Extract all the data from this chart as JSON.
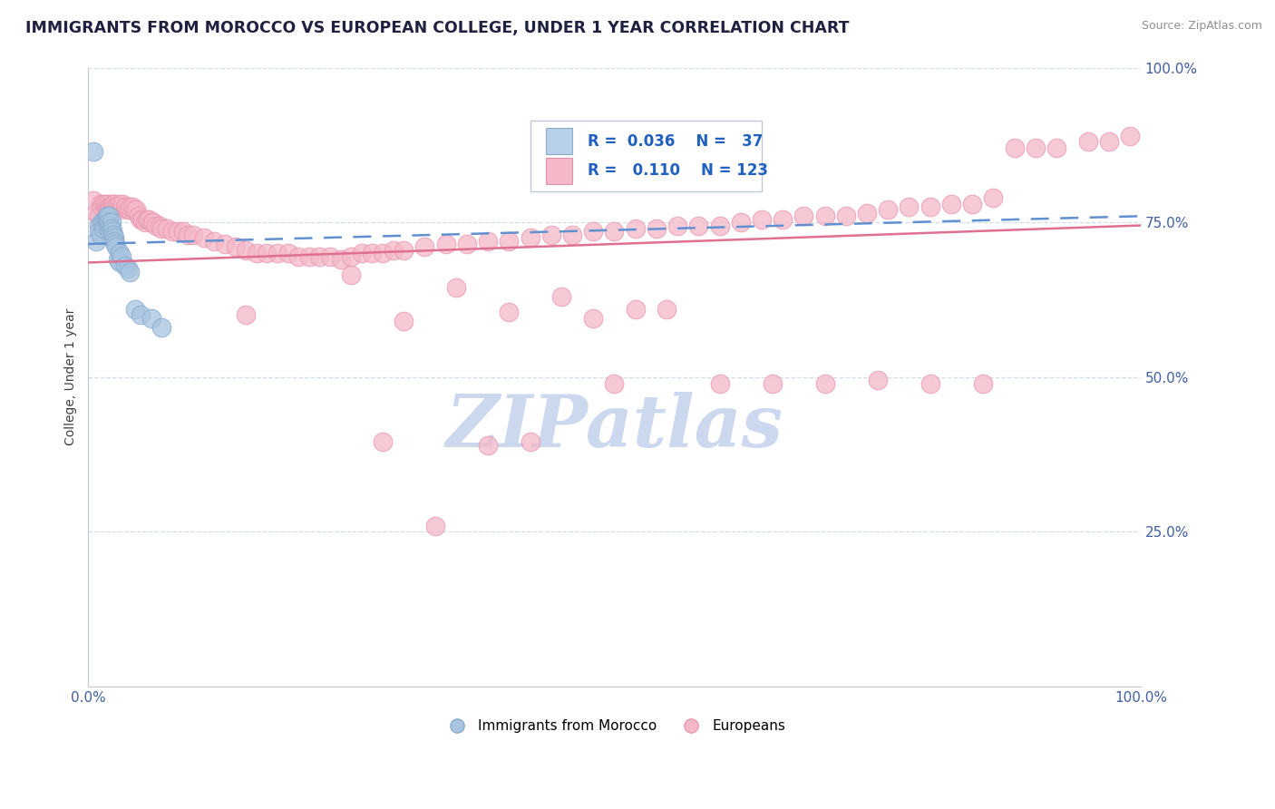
{
  "title": "IMMIGRANTS FROM MOROCCO VS EUROPEAN COLLEGE, UNDER 1 YEAR CORRELATION CHART",
  "source_text": "Source: ZipAtlas.com",
  "ylabel": "College, Under 1 year",
  "xlim": [
    0.0,
    1.0
  ],
  "ylim": [
    0.0,
    1.0
  ],
  "x_tick_labels": [
    "0.0%",
    "100.0%"
  ],
  "y_tick_labels": [
    "25.0%",
    "50.0%",
    "75.0%",
    "100.0%"
  ],
  "y_tick_positions": [
    0.25,
    0.5,
    0.75,
    1.0
  ],
  "legend_r_blue": "0.036",
  "legend_n_blue": "37",
  "legend_r_pink": "0.110",
  "legend_n_pink": "123",
  "legend_label_blue": "Immigrants from Morocco",
  "legend_label_pink": "Europeans",
  "blue_color": "#a8c4e0",
  "pink_color": "#f4b8c8",
  "trend_blue_color": "#6090d0",
  "trend_pink_color": "#e07090",
  "watermark": "ZIPatlas",
  "watermark_color": "#ccd8ee",
  "blue_trend_start": 0.715,
  "blue_trend_end": 0.76,
  "pink_trend_start": 0.685,
  "pink_trend_end": 0.745,
  "blue_scatter_x": [
    0.005,
    0.008,
    0.01,
    0.01,
    0.012,
    0.013,
    0.015,
    0.015,
    0.016,
    0.017,
    0.018,
    0.018,
    0.019,
    0.02,
    0.02,
    0.02,
    0.021,
    0.021,
    0.022,
    0.022,
    0.023,
    0.024,
    0.025,
    0.025,
    0.026,
    0.027,
    0.028,
    0.03,
    0.03,
    0.032,
    0.035,
    0.038,
    0.04,
    0.045,
    0.05,
    0.06,
    0.07
  ],
  "blue_scatter_y": [
    0.865,
    0.72,
    0.745,
    0.735,
    0.73,
    0.75,
    0.75,
    0.74,
    0.745,
    0.755,
    0.76,
    0.75,
    0.745,
    0.755,
    0.76,
    0.75,
    0.745,
    0.735,
    0.75,
    0.74,
    0.735,
    0.73,
    0.725,
    0.72,
    0.715,
    0.71,
    0.69,
    0.685,
    0.7,
    0.695,
    0.68,
    0.675,
    0.67,
    0.61,
    0.6,
    0.595,
    0.58
  ],
  "pink_scatter_x": [
    0.005,
    0.008,
    0.01,
    0.012,
    0.013,
    0.015,
    0.016,
    0.017,
    0.018,
    0.019,
    0.02,
    0.02,
    0.021,
    0.022,
    0.023,
    0.024,
    0.025,
    0.026,
    0.027,
    0.028,
    0.03,
    0.03,
    0.032,
    0.033,
    0.035,
    0.036,
    0.038,
    0.04,
    0.04,
    0.042,
    0.044,
    0.046,
    0.048,
    0.05,
    0.052,
    0.054,
    0.056,
    0.058,
    0.06,
    0.062,
    0.065,
    0.068,
    0.07,
    0.075,
    0.08,
    0.085,
    0.09,
    0.095,
    0.1,
    0.11,
    0.12,
    0.13,
    0.14,
    0.15,
    0.16,
    0.17,
    0.18,
    0.19,
    0.2,
    0.21,
    0.22,
    0.23,
    0.24,
    0.25,
    0.26,
    0.27,
    0.28,
    0.29,
    0.3,
    0.32,
    0.34,
    0.36,
    0.38,
    0.4,
    0.42,
    0.44,
    0.46,
    0.48,
    0.5,
    0.52,
    0.54,
    0.56,
    0.58,
    0.6,
    0.62,
    0.64,
    0.66,
    0.68,
    0.7,
    0.72,
    0.74,
    0.76,
    0.78,
    0.8,
    0.82,
    0.84,
    0.86,
    0.88,
    0.9,
    0.92,
    0.95,
    0.97,
    0.99,
    0.25,
    0.35,
    0.45,
    0.52,
    0.4,
    0.55,
    0.48,
    0.3,
    0.15,
    0.6,
    0.7,
    0.65,
    0.75,
    0.8,
    0.85,
    0.5,
    0.28,
    0.33,
    0.42,
    0.38
  ],
  "pink_scatter_y": [
    0.785,
    0.765,
    0.76,
    0.78,
    0.775,
    0.78,
    0.78,
    0.775,
    0.775,
    0.78,
    0.775,
    0.77,
    0.775,
    0.775,
    0.78,
    0.78,
    0.78,
    0.775,
    0.775,
    0.775,
    0.78,
    0.77,
    0.775,
    0.78,
    0.775,
    0.775,
    0.77,
    0.77,
    0.775,
    0.775,
    0.77,
    0.77,
    0.76,
    0.755,
    0.755,
    0.75,
    0.755,
    0.755,
    0.75,
    0.75,
    0.745,
    0.745,
    0.74,
    0.74,
    0.735,
    0.735,
    0.735,
    0.73,
    0.73,
    0.725,
    0.72,
    0.715,
    0.71,
    0.705,
    0.7,
    0.7,
    0.7,
    0.7,
    0.695,
    0.695,
    0.695,
    0.695,
    0.69,
    0.695,
    0.7,
    0.7,
    0.7,
    0.705,
    0.705,
    0.71,
    0.715,
    0.715,
    0.72,
    0.72,
    0.725,
    0.73,
    0.73,
    0.735,
    0.735,
    0.74,
    0.74,
    0.745,
    0.745,
    0.745,
    0.75,
    0.755,
    0.755,
    0.76,
    0.76,
    0.76,
    0.765,
    0.77,
    0.775,
    0.775,
    0.78,
    0.78,
    0.79,
    0.87,
    0.87,
    0.87,
    0.88,
    0.88,
    0.89,
    0.665,
    0.645,
    0.63,
    0.61,
    0.605,
    0.61,
    0.595,
    0.59,
    0.6,
    0.49,
    0.49,
    0.49,
    0.495,
    0.49,
    0.49,
    0.49,
    0.395,
    0.26,
    0.395,
    0.39
  ]
}
